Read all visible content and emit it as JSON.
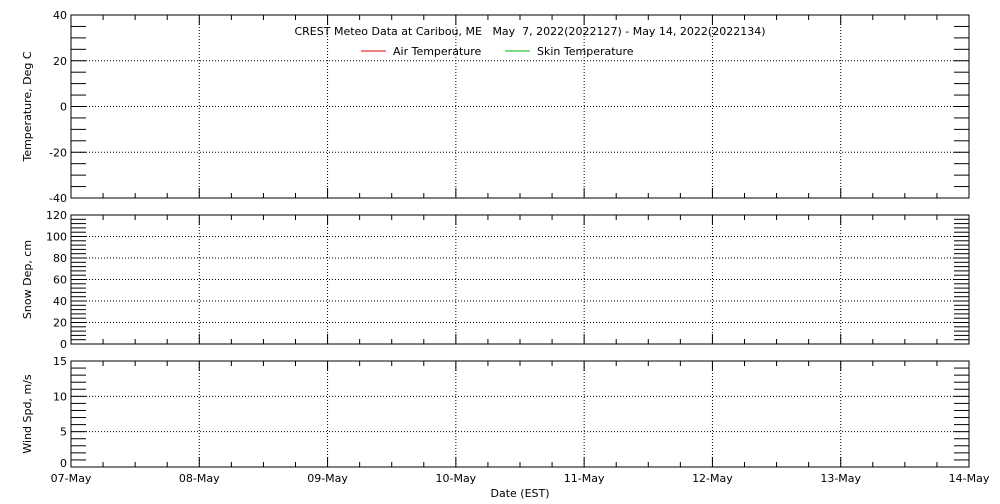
{
  "chart_data": [
    {
      "type": "line",
      "title": "CREST Meteo Data at Caribou, ME   May  7, 2022(2022127) - May 14, 2022(2022134)",
      "ylabel": "Temperature, Deg C",
      "ylim": [
        -40,
        40
      ],
      "yticks": [
        -40,
        -20,
        0,
        20,
        40
      ],
      "yminor_step": 5,
      "grid": true,
      "legend_placement": "top-center",
      "series": [
        {
          "name": "Air Temperature",
          "color": "#e00000",
          "x": [],
          "y": []
        },
        {
          "name": "Skin Temperature",
          "color": "#00b000",
          "x": [],
          "y": []
        }
      ]
    },
    {
      "type": "line",
      "ylabel": "Snow Dep, cm",
      "ylim": [
        0,
        120
      ],
      "yticks": [
        0,
        20,
        40,
        60,
        80,
        100,
        120
      ],
      "yminor_step": 4,
      "grid": true,
      "series": [
        {
          "x": [],
          "y": []
        }
      ]
    },
    {
      "type": "line",
      "ylabel": "Wind Spd, m/s",
      "xlabel": "Date (EST)",
      "ylim": [
        0,
        15
      ],
      "yticks": [
        0,
        5,
        10,
        15
      ],
      "yminor_step": 1,
      "grid": true,
      "series": [
        {
          "x": [],
          "y": []
        }
      ]
    }
  ],
  "x_axis": {
    "label": "Date (EST)",
    "range": [
      "2022-05-07",
      "2022-05-14"
    ],
    "ticks": [
      "07-May",
      "08-May",
      "09-May",
      "10-May",
      "11-May",
      "12-May",
      "13-May",
      "14-May"
    ],
    "minor_step_hours": 6
  }
}
